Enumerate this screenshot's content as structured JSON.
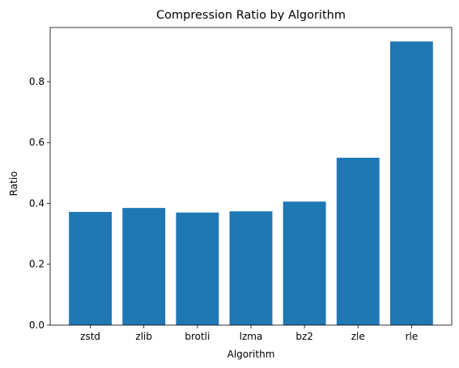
{
  "chart_data": {
    "type": "bar",
    "title": "Compression Ratio by Algorithm",
    "xlabel": "Algorithm",
    "ylabel": "Ratio",
    "categories": [
      "zstd",
      "zlib",
      "brotli",
      "lzma",
      "bz2",
      "zle",
      "rle"
    ],
    "values": [
      0.372,
      0.385,
      0.37,
      0.374,
      0.406,
      0.55,
      0.932
    ],
    "ylim": [
      0,
      0.978
    ],
    "yticks": [
      0.0,
      0.2,
      0.4,
      0.6,
      0.8
    ],
    "ytick_labels": [
      "0.0",
      "0.2",
      "0.4",
      "0.6",
      "0.8"
    ],
    "grid": false,
    "legend": "none",
    "bar_color": "#1f77b4"
  }
}
